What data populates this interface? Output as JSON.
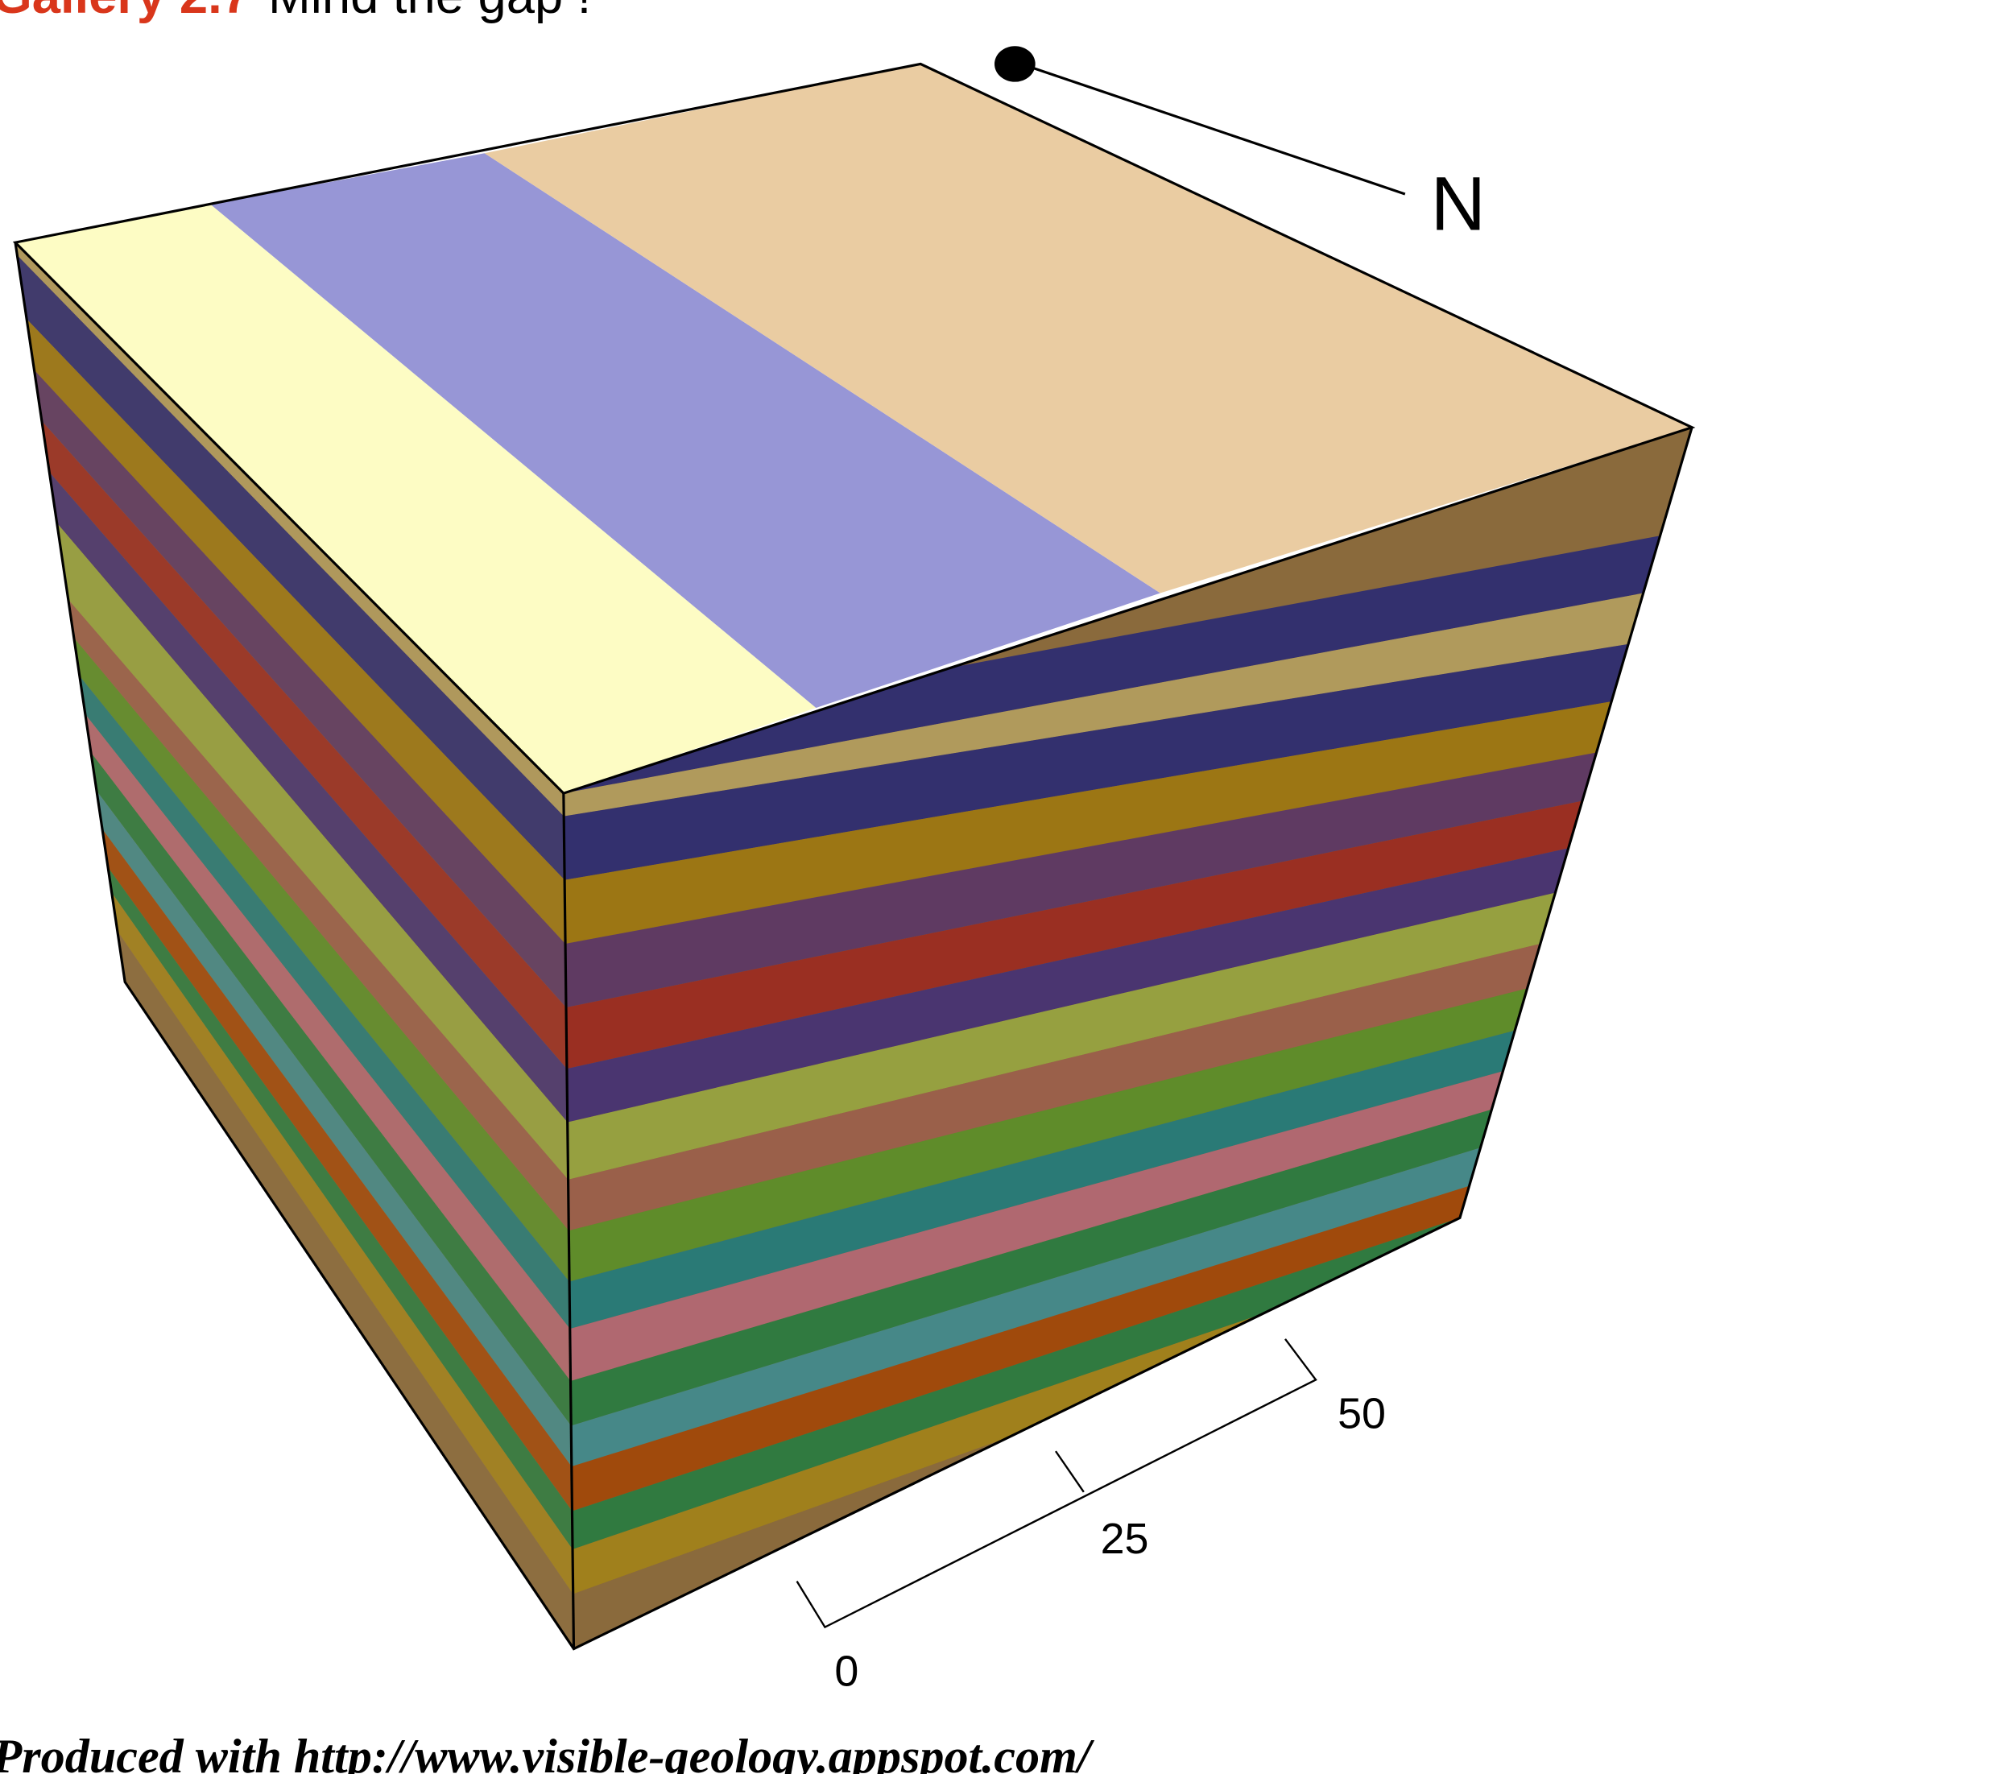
{
  "header": {
    "label": "Gallery 2.7",
    "title": "Mind the gap !"
  },
  "diagram": {
    "north_label": "N",
    "scale_labels": [
      "0",
      "25",
      "50"
    ]
  },
  "footer": "Produced with http://www.visible-geology.appspot.com/"
}
